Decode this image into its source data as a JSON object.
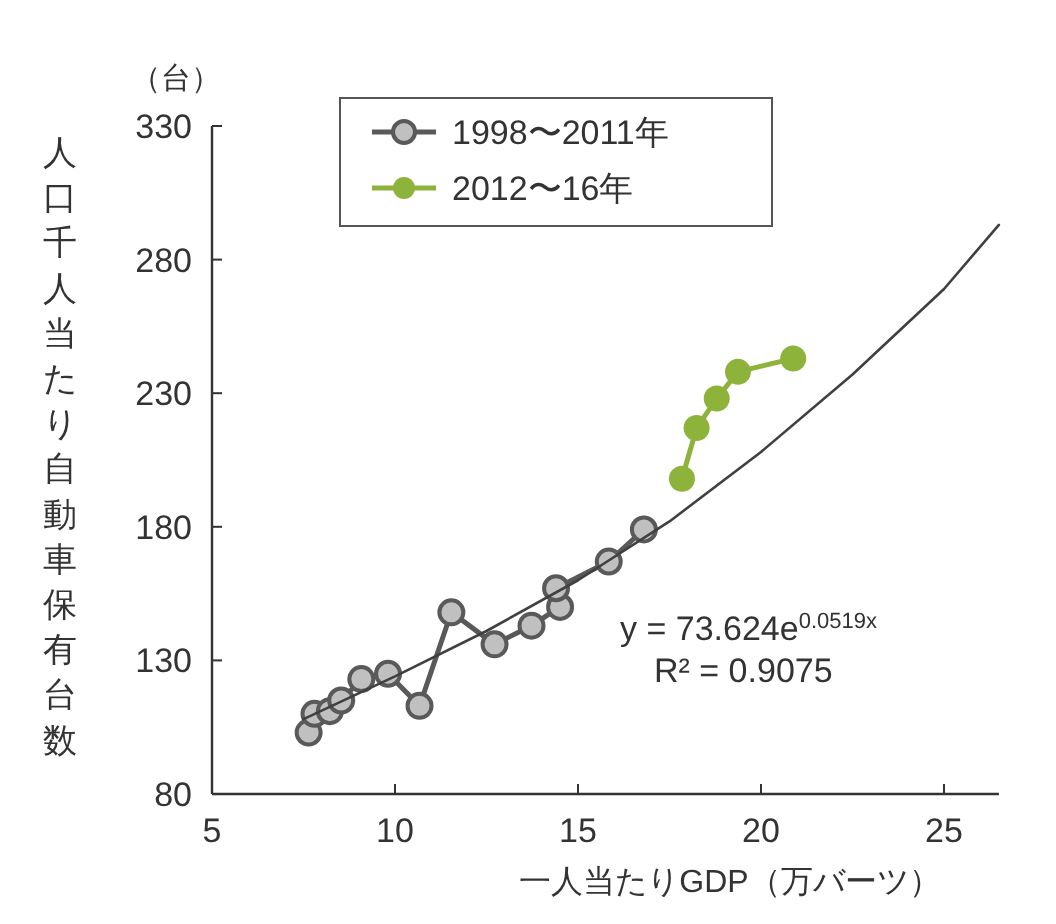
{
  "chart_data": {
    "type": "line",
    "xlabel": "一人当たりGDP（万バーツ）",
    "ylabel": "人口千人当たり自動車保有台数",
    "annotations": [
      "（台）",
      "y = 73.624e$^{0.0519x}$",
      "R² = 0.9075"
    ],
    "xlim": [
      5,
      26.5
    ],
    "xticks": [
      5,
      10,
      15,
      20,
      25
    ],
    "ylim": [
      80,
      330
    ],
    "yticks": [
      80,
      130,
      180,
      230,
      280,
      330
    ],
    "grid": false,
    "legend": "top",
    "marker": "circle",
    "series": [
      {
        "name": "1998〜2011年",
        "color": "#c0c0c0",
        "x": [
          7.64,
          7.8,
          8.22,
          8.53,
          9.08,
          9.81,
          10.67,
          11.54,
          12.72,
          13.73,
          14.51,
          14.4,
          15.84,
          16.8
        ],
        "values": [
          103,
          110,
          111,
          115,
          123,
          125,
          113,
          148,
          136,
          143,
          150,
          157,
          167,
          179
        ]
      },
      {
        "name": "2012〜16年",
        "color": "#8db33a",
        "x": [
          17.84,
          18.24,
          18.79,
          19.37,
          20.88
        ],
        "values": [
          198,
          217,
          228,
          238,
          243
        ]
      },
      {
        "type": "line",
        "marker": "none",
        "color": "#404040",
        "x": [
          7.5,
          10,
          12.5,
          15,
          17.5,
          20,
          22.5,
          25,
          26.5
        ],
        "values": [
          108,
          124,
          141,
          160,
          182,
          208,
          237,
          269,
          293
        ]
      }
    ]
  }
}
